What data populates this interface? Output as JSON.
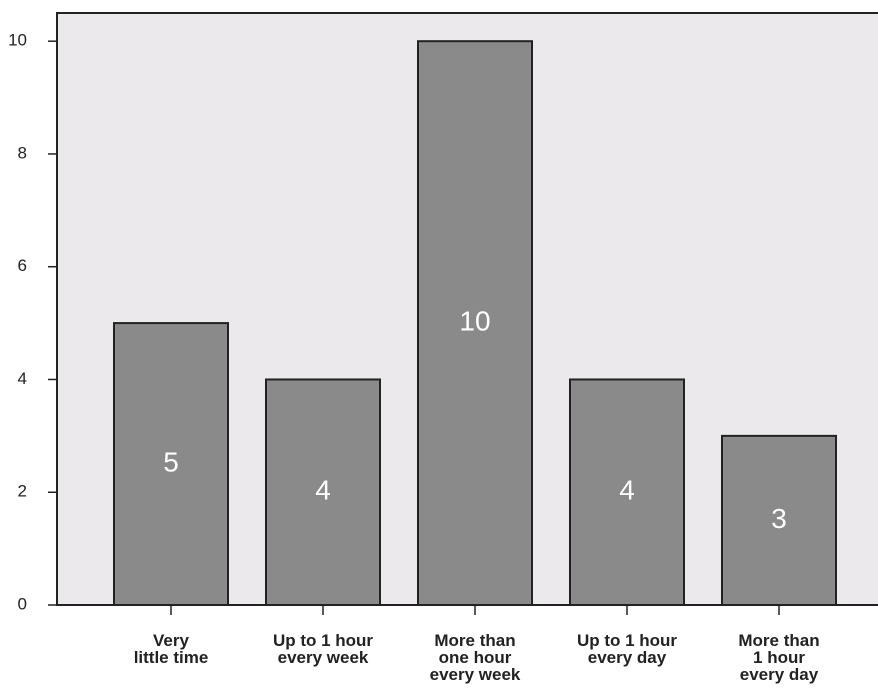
{
  "chart_data": {
    "type": "bar",
    "categories": [
      "Very\nlittle time",
      "Up to 1 hour\nevery week",
      "More than\none hour\nevery week",
      "Up to 1 hour\nevery day",
      "More than\n1 hour\nevery day"
    ],
    "values": [
      5,
      4,
      10,
      4,
      3
    ],
    "color": "#8a8a8a",
    "ylim": [
      0,
      10.5
    ],
    "yticks": [
      0,
      2,
      4,
      6,
      8,
      10
    ],
    "grid": false
  }
}
